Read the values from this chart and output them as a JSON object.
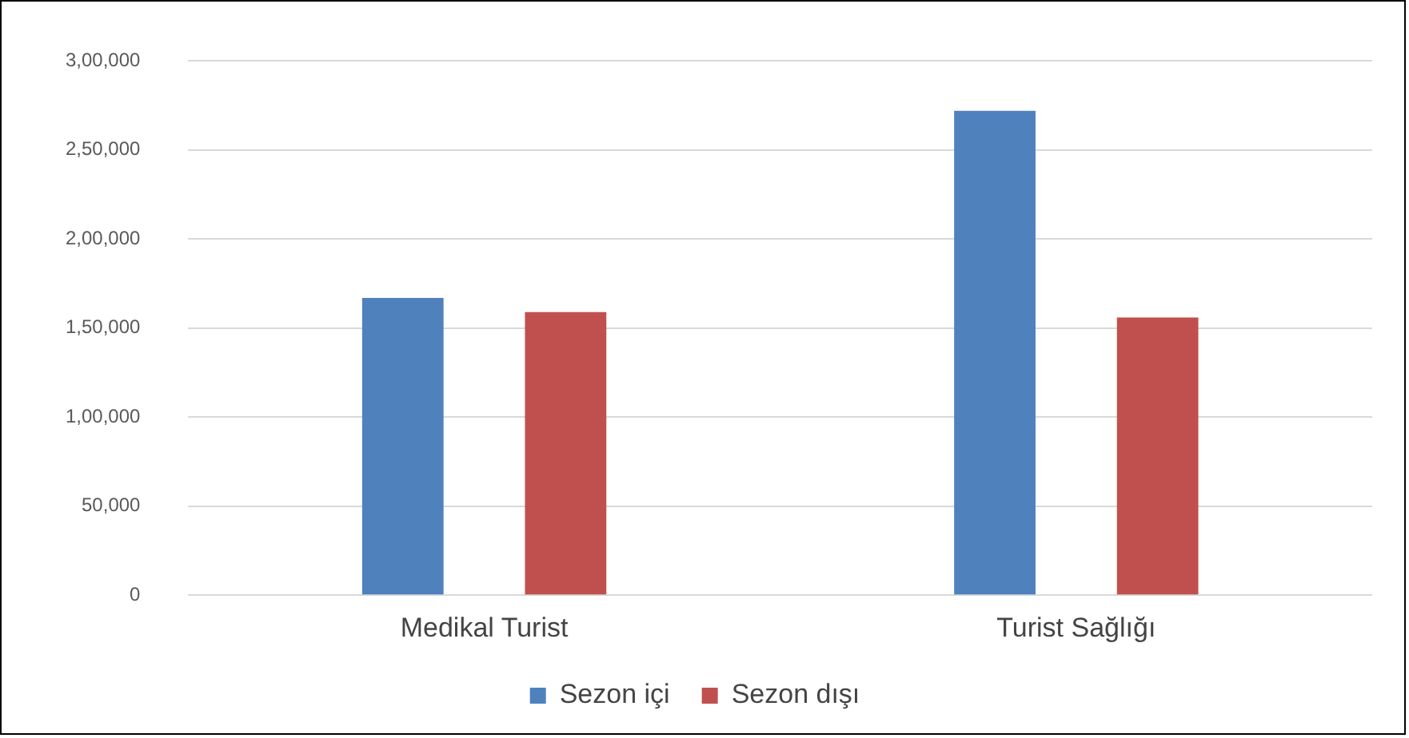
{
  "chart_data": {
    "type": "bar",
    "categories": [
      "Medikal Turist",
      "Turist Sağlığı"
    ],
    "series": [
      {
        "name": "Sezon içi",
        "color": "#4f81bd",
        "values": [
          167000,
          272000
        ]
      },
      {
        "name": "Sezon dışı",
        "color": "#c0504d",
        "values": [
          159000,
          156000
        ]
      }
    ],
    "ylim": [
      0,
      300000
    ],
    "yticks": [
      {
        "value": 0,
        "label": "0"
      },
      {
        "value": 50000,
        "label": "50,000"
      },
      {
        "value": 100000,
        "label": "1,00,000"
      },
      {
        "value": 150000,
        "label": "1,50,000"
      },
      {
        "value": 200000,
        "label": "2,00,000"
      },
      {
        "value": 250000,
        "label": "2,50,000"
      },
      {
        "value": 300000,
        "label": "3,00,000"
      }
    ],
    "grid": "y",
    "legend": "bottom"
  }
}
